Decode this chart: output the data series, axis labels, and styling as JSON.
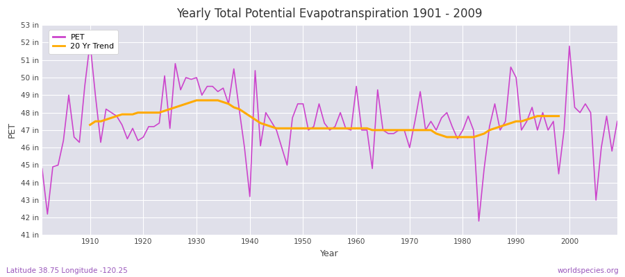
{
  "title": "Yearly Total Potential Evapotranspiration 1901 - 2009",
  "xlabel": "Year",
  "ylabel": "PET",
  "subtitle_left": "Latitude 38.75 Longitude -120.25",
  "subtitle_right": "worldspecies.org",
  "ylim": [
    41,
    53
  ],
  "ytick_labels": [
    "41 in",
    "42 in",
    "43 in",
    "44 in",
    "45 in",
    "46 in",
    "47 in",
    "48 in",
    "49 in",
    "50 in",
    "51 in",
    "52 in",
    "53 in"
  ],
  "ytick_values": [
    41,
    42,
    43,
    44,
    45,
    46,
    47,
    48,
    49,
    50,
    51,
    52,
    53
  ],
  "pet_color": "#cc44cc",
  "trend_color": "#ffaa00",
  "fig_bg_color": "#ffffff",
  "plot_bg_color": "#e0e0ea",
  "grid_color": "#ffffff",
  "legend_bg": "#ffffff",
  "title_color": "#333333",
  "subtitle_color": "#9955bb",
  "xticks": [
    1910,
    1920,
    1930,
    1940,
    1950,
    1960,
    1970,
    1980,
    1990,
    2000
  ],
  "xlim": [
    1901,
    2009
  ],
  "years": [
    1901,
    1902,
    1903,
    1904,
    1905,
    1906,
    1907,
    1908,
    1909,
    1910,
    1911,
    1912,
    1913,
    1914,
    1915,
    1916,
    1917,
    1918,
    1919,
    1920,
    1921,
    1922,
    1923,
    1924,
    1925,
    1926,
    1927,
    1928,
    1929,
    1930,
    1931,
    1932,
    1933,
    1934,
    1935,
    1936,
    1937,
    1938,
    1939,
    1940,
    1941,
    1942,
    1943,
    1944,
    1945,
    1946,
    1947,
    1948,
    1949,
    1950,
    1951,
    1952,
    1953,
    1954,
    1955,
    1956,
    1957,
    1958,
    1959,
    1960,
    1961,
    1962,
    1963,
    1964,
    1965,
    1966,
    1967,
    1968,
    1969,
    1970,
    1971,
    1972,
    1973,
    1974,
    1975,
    1976,
    1977,
    1978,
    1979,
    1980,
    1981,
    1982,
    1983,
    1984,
    1985,
    1986,
    1987,
    1988,
    1989,
    1990,
    1991,
    1992,
    1993,
    1994,
    1995,
    1996,
    1997,
    1998,
    1999,
    2000,
    2001,
    2002,
    2003,
    2004,
    2005,
    2006,
    2007,
    2008,
    2009
  ],
  "pet": [
    44.8,
    42.2,
    44.9,
    45.0,
    46.4,
    49.0,
    46.6,
    46.3,
    49.5,
    52.0,
    49.0,
    46.3,
    48.2,
    48.0,
    47.8,
    47.3,
    46.5,
    47.1,
    46.4,
    46.6,
    47.2,
    47.2,
    47.4,
    50.1,
    47.1,
    50.8,
    49.3,
    50.0,
    49.9,
    50.0,
    49.0,
    49.5,
    49.5,
    49.2,
    49.4,
    48.5,
    50.5,
    48.2,
    46.0,
    43.2,
    50.4,
    46.1,
    48.0,
    47.5,
    47.0,
    46.0,
    45.0,
    47.7,
    48.5,
    48.5,
    47.0,
    47.2,
    48.5,
    47.4,
    47.0,
    47.2,
    48.0,
    47.1,
    47.0,
    49.5,
    47.0,
    47.0,
    44.8,
    49.3,
    47.0,
    46.8,
    46.8,
    47.0,
    47.0,
    46.0,
    47.5,
    49.2,
    47.0,
    47.5,
    47.0,
    47.7,
    48.0,
    47.2,
    46.5,
    47.0,
    47.8,
    47.0,
    41.8,
    44.8,
    47.2,
    48.5,
    47.0,
    47.5,
    50.6,
    50.0,
    47.0,
    47.5,
    48.3,
    47.0,
    48.0,
    47.0,
    47.5,
    44.5,
    47.0,
    51.8,
    48.3,
    48.0,
    48.5,
    48.0,
    43.0,
    46.0,
    47.8,
    45.8,
    47.5
  ],
  "trend": [
    null,
    null,
    null,
    null,
    null,
    null,
    null,
    null,
    null,
    47.3,
    47.5,
    47.5,
    47.6,
    47.7,
    47.8,
    47.9,
    47.9,
    47.9,
    48.0,
    48.0,
    48.0,
    48.0,
    48.0,
    48.1,
    48.2,
    48.3,
    48.4,
    48.5,
    48.6,
    48.7,
    48.7,
    48.7,
    48.7,
    48.7,
    48.6,
    48.5,
    48.3,
    48.2,
    48.0,
    47.8,
    47.6,
    47.4,
    47.3,
    47.2,
    47.1,
    47.1,
    47.1,
    47.1,
    47.1,
    47.1,
    47.1,
    47.1,
    47.1,
    47.1,
    47.1,
    47.1,
    47.1,
    47.1,
    47.1,
    47.1,
    47.1,
    47.1,
    47.0,
    47.0,
    47.0,
    47.0,
    47.0,
    47.0,
    47.0,
    47.0,
    47.0,
    47.0,
    47.0,
    47.0,
    46.8,
    46.7,
    46.6,
    46.6,
    46.6,
    46.6,
    46.6,
    46.6,
    46.7,
    46.8,
    47.0,
    47.1,
    47.2,
    47.3,
    47.4,
    47.5,
    47.5,
    47.6,
    47.7,
    47.8,
    47.8,
    47.8,
    47.8,
    47.8,
    null,
    null,
    null,
    null,
    null,
    null,
    null,
    null,
    null,
    null
  ]
}
